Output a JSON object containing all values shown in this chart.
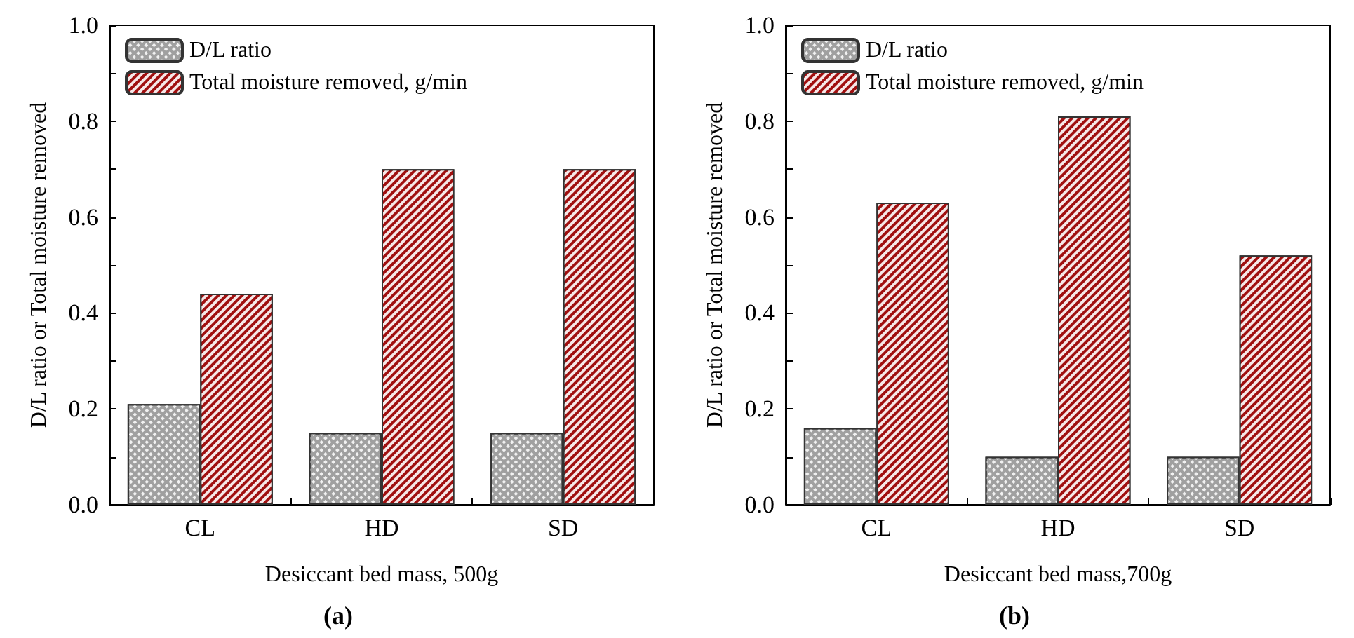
{
  "chart_data": [
    {
      "type": "bar",
      "xlabel": "Desiccant bed mass, 500g",
      "ylabel": "D/L ratio or Total moisture removed",
      "annotations": [
        "(a)"
      ],
      "categories": [
        "CL",
        "HD",
        "SD"
      ],
      "series": [
        {
          "name": "D/L ratio",
          "color": "#a0a0a0",
          "values": [
            0.21,
            0.15,
            0.15
          ]
        },
        {
          "name": "Total moisture removed, g/min",
          "color": "#a01010",
          "values": [
            0.44,
            0.7,
            0.7
          ]
        }
      ],
      "ylim": [
        0,
        1
      ],
      "yticks": [
        {
          "value": 0,
          "label": "0.0"
        },
        {
          "value": 0.1,
          "label": null
        },
        0.2,
        {
          "value": 0.3,
          "label": null
        },
        0.4,
        {
          "value": 0.5,
          "label": null
        },
        0.6,
        {
          "value": 0.7,
          "label": null
        },
        0.8,
        {
          "value": 0.9,
          "label": null
        },
        {
          "value": 1,
          "label": "1.0"
        }
      ],
      "grid": false,
      "legend": "top left"
    },
    {
      "type": "bar",
      "xlabel": "Desiccant bed mass,700g",
      "ylabel": "D/L ratio or Total moisture removed",
      "annotations": [
        "(b)"
      ],
      "categories": [
        "CL",
        "HD",
        "SD"
      ],
      "series": [
        {
          "name": "D/L ratio",
          "color": "#a0a0a0",
          "values": [
            0.16,
            0.1,
            0.1
          ]
        },
        {
          "name": "Total moisture removed, g/min",
          "color": "#a01010",
          "values": [
            0.63,
            0.81,
            0.52
          ]
        }
      ],
      "ylim": [
        0,
        1
      ],
      "yticks": [
        {
          "value": 0,
          "label": "0.0"
        },
        {
          "value": 0.1,
          "label": null
        },
        0.2,
        {
          "value": 0.3,
          "label": null
        },
        0.4,
        {
          "value": 0.5,
          "label": null
        },
        0.6,
        {
          "value": 0.7,
          "label": null
        },
        0.8,
        {
          "value": 0.9,
          "label": null
        },
        {
          "value": 1,
          "label": "1.0"
        }
      ],
      "grid": false,
      "legend": "top left"
    }
  ]
}
